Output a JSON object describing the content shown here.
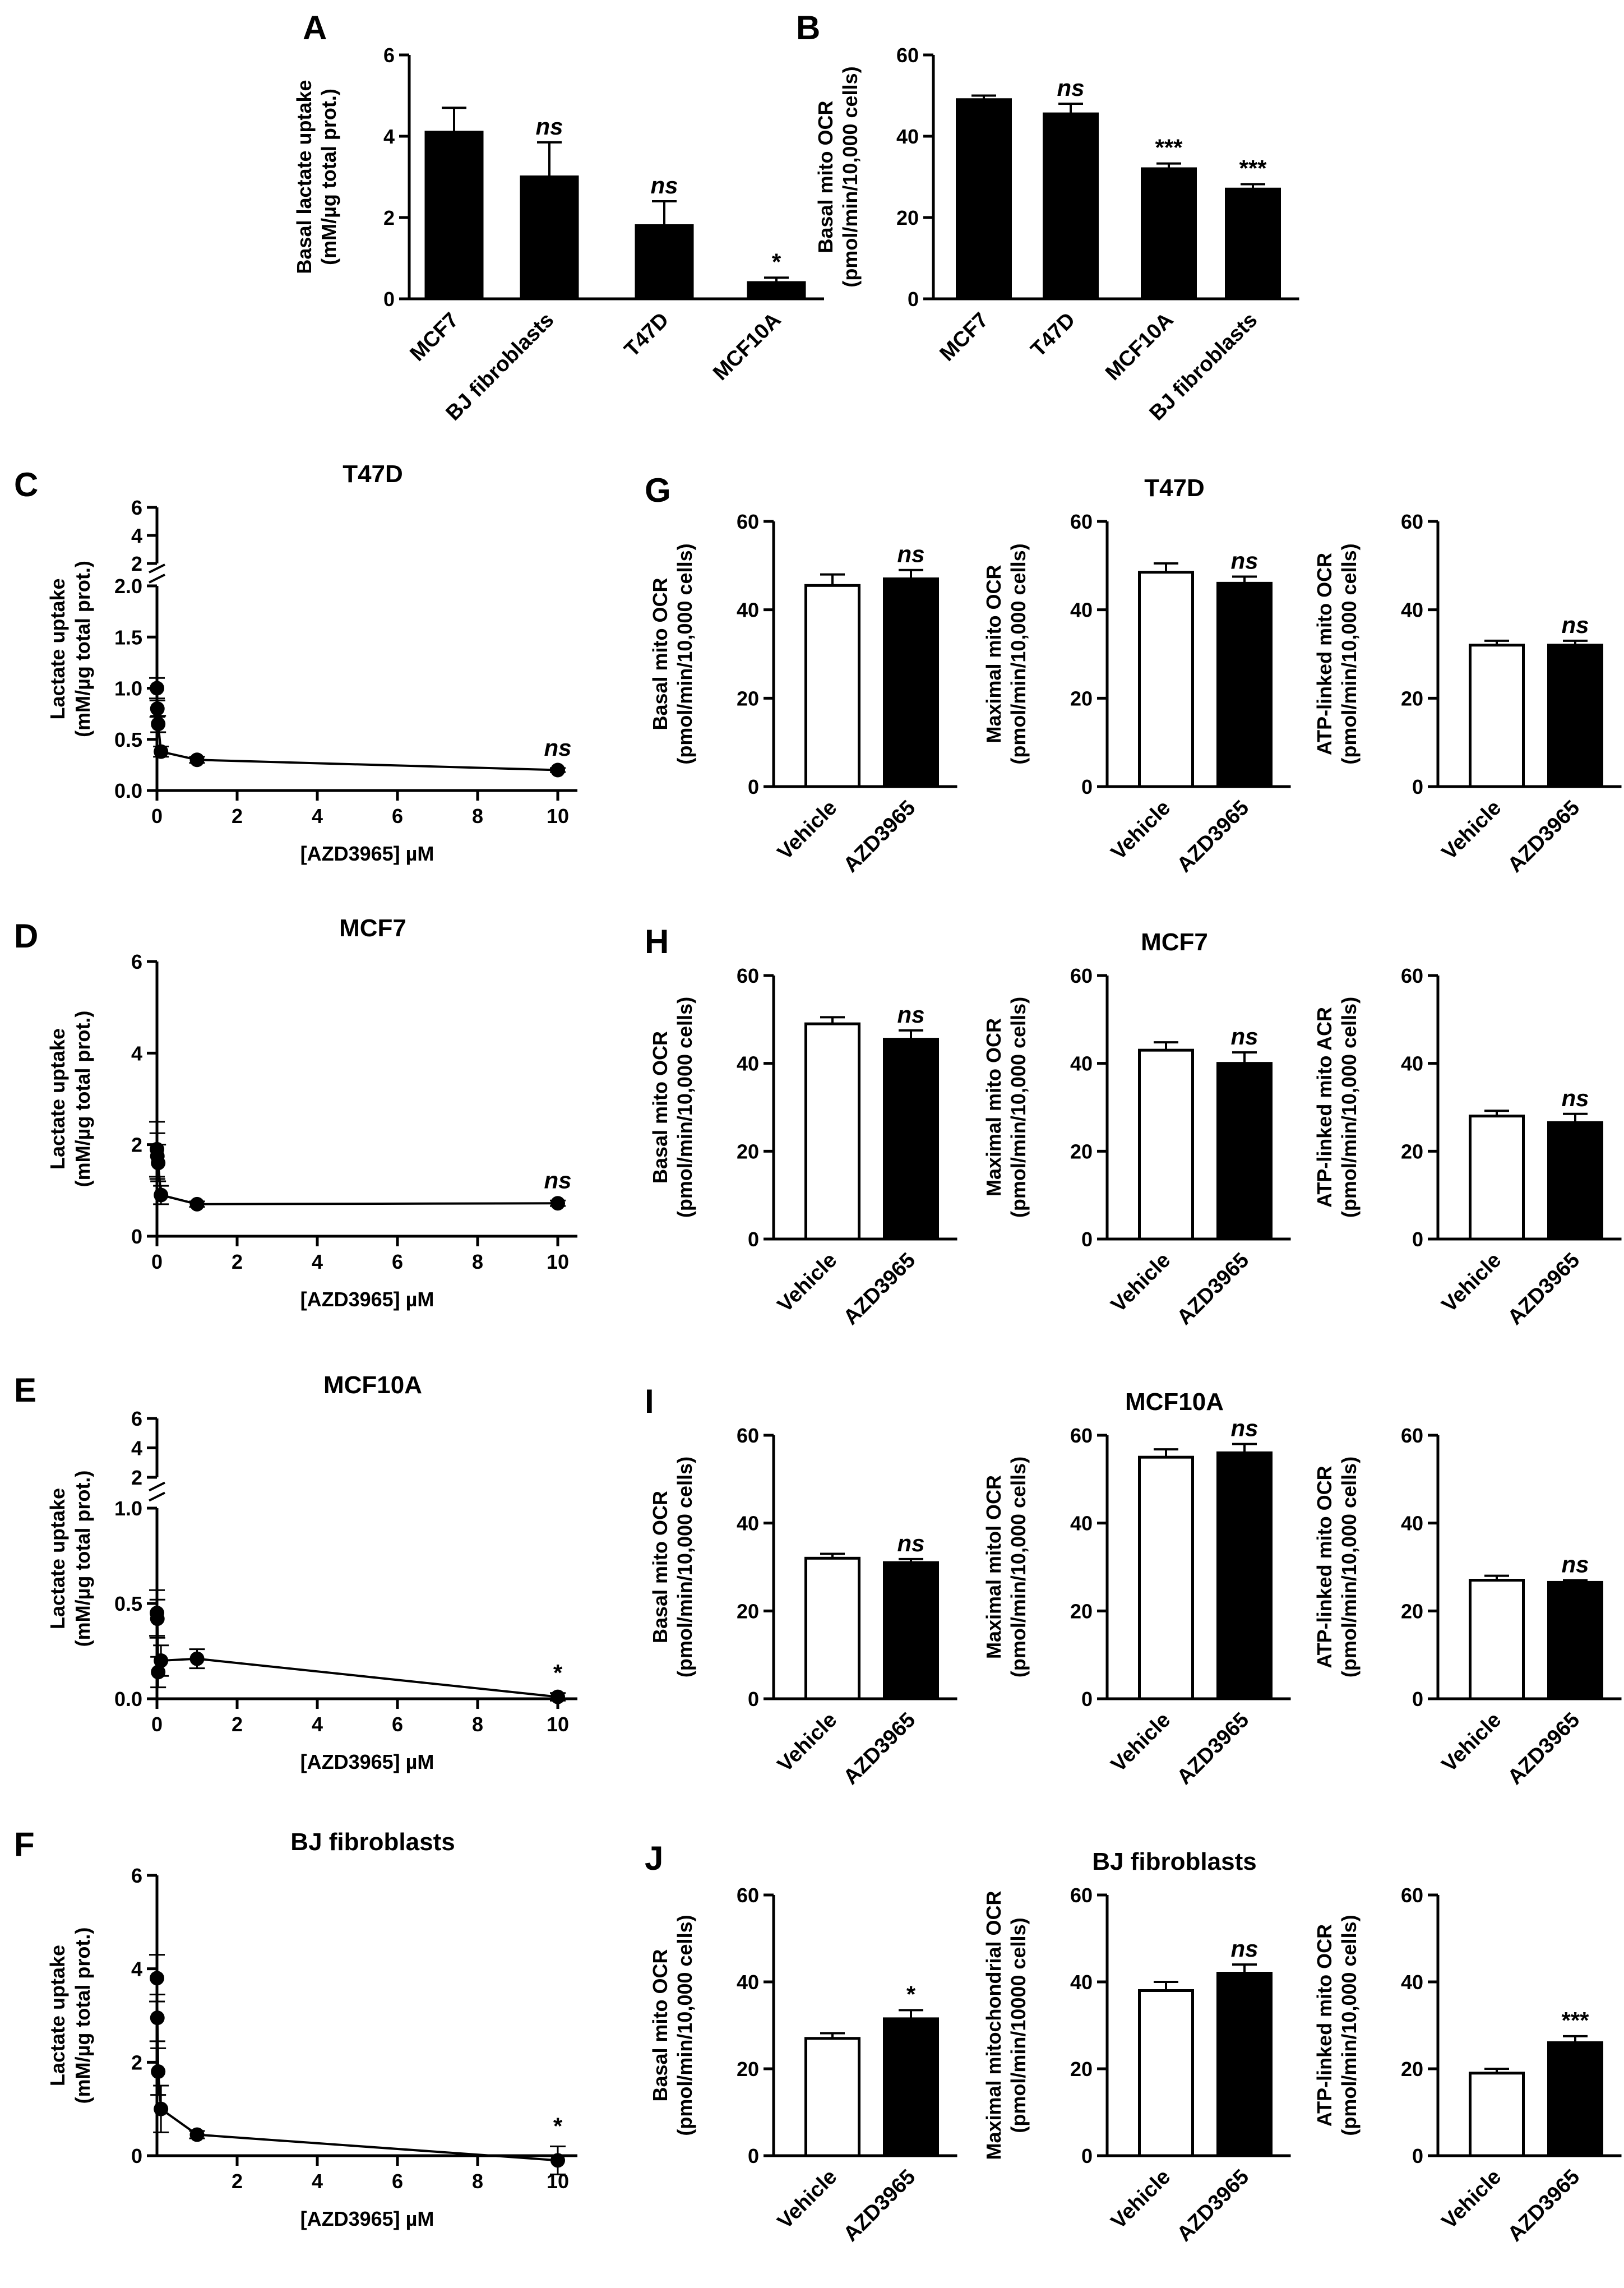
{
  "chart_data": [
    {
      "id": "A",
      "type": "bar",
      "panel_label": "A",
      "title": "",
      "ylabel": [
        "Basal lactate uptake",
        "(mM/µg total prot.)"
      ],
      "categories": [
        "MCF7",
        "BJ fibroblasts",
        "T47D",
        "MCF10A"
      ],
      "values": [
        4.1,
        3.0,
        1.8,
        0.4
      ],
      "errors": [
        0.6,
        0.85,
        0.6,
        0.12
      ],
      "fills": [
        "black",
        "black",
        "black",
        "black"
      ],
      "annotations": [
        "",
        "ns",
        "ns",
        "*"
      ],
      "ylim": [
        0,
        6
      ],
      "yticks": [
        0,
        2,
        4,
        6
      ]
    },
    {
      "id": "B",
      "type": "bar",
      "panel_label": "B",
      "title": "",
      "ylabel": [
        "Basal mito OCR",
        "(pmol/min/10,000 cells)"
      ],
      "categories": [
        "MCF7",
        "T47D",
        "MCF10A",
        "BJ fibroblasts"
      ],
      "values": [
        49,
        45.5,
        32,
        27
      ],
      "errors": [
        1.0,
        2.5,
        1.3,
        1.2
      ],
      "fills": [
        "black",
        "black",
        "black",
        "black"
      ],
      "annotations": [
        "",
        "ns",
        "***",
        "***"
      ],
      "ylim": [
        0,
        60
      ],
      "yticks": [
        0,
        20,
        40,
        60
      ]
    },
    {
      "id": "C",
      "type": "line",
      "panel_label": "C",
      "title": "T47D",
      "xlabel": "[AZD3965] µM",
      "ylabel": [
        "Lactate uptake",
        "(mM/µg total prot.)"
      ],
      "x": [
        0,
        0.01,
        0.03,
        0.1,
        1,
        10
      ],
      "y": [
        1.0,
        0.8,
        0.65,
        0.38,
        0.3,
        0.2
      ],
      "errors": [
        0.1,
        0.08,
        0.08,
        0.05,
        0.03,
        0.02
      ],
      "xlim": [
        0,
        10
      ],
      "xticks": [
        0,
        2,
        4,
        6,
        8,
        10
      ],
      "ylim": [
        0,
        2
      ],
      "yticks": [
        "0.0",
        "0.5",
        "1.0",
        "1.5",
        "2.0"
      ],
      "break_ticks": [
        "2",
        "4",
        "6"
      ],
      "annotation": "ns"
    },
    {
      "id": "D",
      "type": "line",
      "panel_label": "D",
      "title": "MCF7",
      "xlabel": "[AZD3965] µM",
      "ylabel": [
        "Lactate uptake",
        "(mM/µg total prot.)"
      ],
      "x": [
        0,
        0.01,
        0.03,
        0.1,
        1,
        10
      ],
      "y": [
        1.9,
        1.75,
        1.6,
        0.9,
        0.7,
        0.72
      ],
      "errors": [
        0.6,
        0.5,
        0.4,
        0.2,
        0.06,
        0.06
      ],
      "xlim": [
        0,
        10
      ],
      "xticks": [
        0,
        2,
        4,
        6,
        8,
        10
      ],
      "ylim": [
        0,
        6
      ],
      "yticks": [
        "0",
        "2",
        "4",
        "6"
      ],
      "annotation": "ns"
    },
    {
      "id": "E",
      "type": "line",
      "panel_label": "E",
      "title": "MCF10A",
      "xlabel": "[AZD3965] µM",
      "ylabel": [
        "Lactate uptake",
        "(mM/µg total prot.)"
      ],
      "x": [
        0,
        0.01,
        0.03,
        0.1,
        1,
        10
      ],
      "y": [
        0.45,
        0.42,
        0.14,
        0.2,
        0.21,
        0.01
      ],
      "errors": [
        0.12,
        0.1,
        0.08,
        0.08,
        0.05,
        0.02
      ],
      "xlim": [
        0,
        10
      ],
      "xticks": [
        0,
        2,
        4,
        6,
        8,
        10
      ],
      "ylim": [
        0,
        1
      ],
      "yticks": [
        "0.0",
        "0.5",
        "1.0"
      ],
      "break_ticks": [
        "2",
        "4",
        "6"
      ],
      "annotation": "*"
    },
    {
      "id": "F",
      "type": "line",
      "panel_label": "F",
      "title": "BJ fibroblasts",
      "xlabel": "[AZD3965] µM",
      "ylabel": [
        "Lactate uptake",
        "(mM/µg total prot.)"
      ],
      "x": [
        0,
        0.01,
        0.03,
        0.1,
        1,
        10
      ],
      "y": [
        3.8,
        2.95,
        1.8,
        1.0,
        0.45,
        -0.1
      ],
      "errors": [
        0.5,
        0.5,
        0.5,
        0.5,
        0.08,
        0.3
      ],
      "xlim": [
        0,
        10
      ],
      "xticks": [
        2,
        4,
        6,
        8,
        10
      ],
      "ylim": [
        0,
        6
      ],
      "yticks": [
        "0",
        "2",
        "4",
        "6"
      ],
      "annotation": "*"
    },
    {
      "id": "G1",
      "type": "bar",
      "panel_label": "G",
      "title": "",
      "ylabel": [
        "Basal mito OCR",
        "(pmol/min/10,000 cells)"
      ],
      "categories": [
        "Vehicle",
        "AZD3965"
      ],
      "values": [
        45.5,
        47
      ],
      "errors": [
        2.5,
        2
      ],
      "fills": [
        "white",
        "black"
      ],
      "annotations": [
        "",
        "ns"
      ],
      "ylim": [
        0,
        60
      ],
      "yticks": [
        0,
        20,
        40,
        60
      ]
    },
    {
      "id": "G2",
      "type": "bar",
      "panel_label": "",
      "title": "T47D",
      "ylabel": [
        "Maximal mito OCR",
        "(pmol/min/10,000 cells)"
      ],
      "categories": [
        "Vehicle",
        "AZD3965"
      ],
      "values": [
        48.5,
        46
      ],
      "errors": [
        2,
        1.5
      ],
      "fills": [
        "white",
        "black"
      ],
      "annotations": [
        "",
        "ns"
      ],
      "ylim": [
        0,
        60
      ],
      "yticks": [
        0,
        20,
        40,
        60
      ]
    },
    {
      "id": "G3",
      "type": "bar",
      "panel_label": "",
      "title": "",
      "ylabel": [
        "ATP-linked mito OCR",
        "(pmol/min/10,000 cells)"
      ],
      "categories": [
        "Vehicle",
        "AZD3965"
      ],
      "values": [
        32,
        32
      ],
      "errors": [
        1,
        1
      ],
      "fills": [
        "white",
        "black"
      ],
      "annotations": [
        "",
        "ns"
      ],
      "ylim": [
        0,
        60
      ],
      "yticks": [
        0,
        20,
        40,
        60
      ]
    },
    {
      "id": "H1",
      "type": "bar",
      "panel_label": "H",
      "title": "",
      "ylabel": [
        "Basal mito OCR",
        "(pmol/min/10,000 cells)"
      ],
      "categories": [
        "Vehicle",
        "AZD3965"
      ],
      "values": [
        49,
        45.5
      ],
      "errors": [
        1.5,
        2
      ],
      "fills": [
        "white",
        "black"
      ],
      "annotations": [
        "",
        "ns"
      ],
      "ylim": [
        0,
        60
      ],
      "yticks": [
        0,
        20,
        40,
        60
      ]
    },
    {
      "id": "H2",
      "type": "bar",
      "panel_label": "",
      "title": "MCF7",
      "ylabel": [
        "Maximal mito OCR",
        "(pmol/min/10,000 cells)"
      ],
      "categories": [
        "Vehicle",
        "AZD3965"
      ],
      "values": [
        43,
        40
      ],
      "errors": [
        1.8,
        2.5
      ],
      "fills": [
        "white",
        "black"
      ],
      "annotations": [
        "",
        "ns"
      ],
      "ylim": [
        0,
        60
      ],
      "yticks": [
        0,
        20,
        40,
        60
      ]
    },
    {
      "id": "H3",
      "type": "bar",
      "panel_label": "",
      "title": "",
      "ylabel": [
        "ATP-linked mito ACR",
        "(pmol/min/10,000 cells)"
      ],
      "categories": [
        "Vehicle",
        "AZD3965"
      ],
      "values": [
        28,
        26.5
      ],
      "errors": [
        1.2,
        2
      ],
      "fills": [
        "white",
        "black"
      ],
      "annotations": [
        "",
        "ns"
      ],
      "ylim": [
        0,
        60
      ],
      "yticks": [
        0,
        20,
        40,
        60
      ]
    },
    {
      "id": "I1",
      "type": "bar",
      "panel_label": "I",
      "title": "",
      "ylabel": [
        "Basal mito OCR",
        "(pmol/min/10,000 cells)"
      ],
      "categories": [
        "Vehicle",
        "AZD3965"
      ],
      "values": [
        32,
        31
      ],
      "errors": [
        1,
        0.8
      ],
      "fills": [
        "white",
        "black"
      ],
      "annotations": [
        "",
        "ns"
      ],
      "ylim": [
        0,
        60
      ],
      "yticks": [
        0,
        20,
        40,
        60
      ]
    },
    {
      "id": "I2",
      "type": "bar",
      "panel_label": "",
      "title": "MCF10A",
      "ylabel": [
        "Maximal mitol OCR",
        "(pmol/min/10,000 cells)"
      ],
      "categories": [
        "Vehicle",
        "AZD3965"
      ],
      "values": [
        55,
        56
      ],
      "errors": [
        1.8,
        2
      ],
      "fills": [
        "white",
        "black"
      ],
      "annotations": [
        "",
        "ns"
      ],
      "ylim": [
        0,
        60
      ],
      "yticks": [
        0,
        20,
        40,
        60
      ]
    },
    {
      "id": "I3",
      "type": "bar",
      "panel_label": "",
      "title": "",
      "ylabel": [
        "ATP-linked mito OCR",
        "(pmol/min/10,000 cells)"
      ],
      "categories": [
        "Vehicle",
        "AZD3965"
      ],
      "values": [
        27,
        26.5
      ],
      "errors": [
        1,
        0.5
      ],
      "fills": [
        "white",
        "black"
      ],
      "annotations": [
        "",
        "ns"
      ],
      "ylim": [
        0,
        60
      ],
      "yticks": [
        0,
        20,
        40,
        60
      ]
    },
    {
      "id": "J1",
      "type": "bar",
      "panel_label": "J",
      "title": "",
      "ylabel": [
        "Basal mito OCR",
        "(pmol/min/10,000 cells)"
      ],
      "categories": [
        "Vehicle",
        "AZD3965"
      ],
      "values": [
        27,
        31.5
      ],
      "errors": [
        1.2,
        2
      ],
      "fills": [
        "white",
        "black"
      ],
      "annotations": [
        "",
        "*"
      ],
      "ylim": [
        0,
        60
      ],
      "yticks": [
        0,
        20,
        40,
        60
      ]
    },
    {
      "id": "J2",
      "type": "bar",
      "panel_label": "",
      "title": "BJ fibroblasts",
      "ylabel": [
        "Maximal mitochondrial OCR",
        "(pmol/min/10000 cells)"
      ],
      "categories": [
        "Vehicle",
        "AZD3965"
      ],
      "values": [
        38,
        42
      ],
      "errors": [
        2,
        2
      ],
      "fills": [
        "white",
        "black"
      ],
      "annotations": [
        "",
        "ns"
      ],
      "ylim": [
        0,
        60
      ],
      "yticks": [
        0,
        20,
        40,
        60
      ]
    },
    {
      "id": "J3",
      "type": "bar",
      "panel_label": "",
      "title": "",
      "ylabel": [
        "ATP-linked mito OCR",
        "(pmol/min/10,000 cells)"
      ],
      "categories": [
        "Vehicle",
        "AZD3965"
      ],
      "values": [
        19,
        26
      ],
      "errors": [
        1,
        1.5
      ],
      "fills": [
        "white",
        "black"
      ],
      "annotations": [
        "",
        "***"
      ],
      "ylim": [
        0,
        60
      ],
      "yticks": [
        0,
        20,
        40,
        60
      ]
    }
  ]
}
